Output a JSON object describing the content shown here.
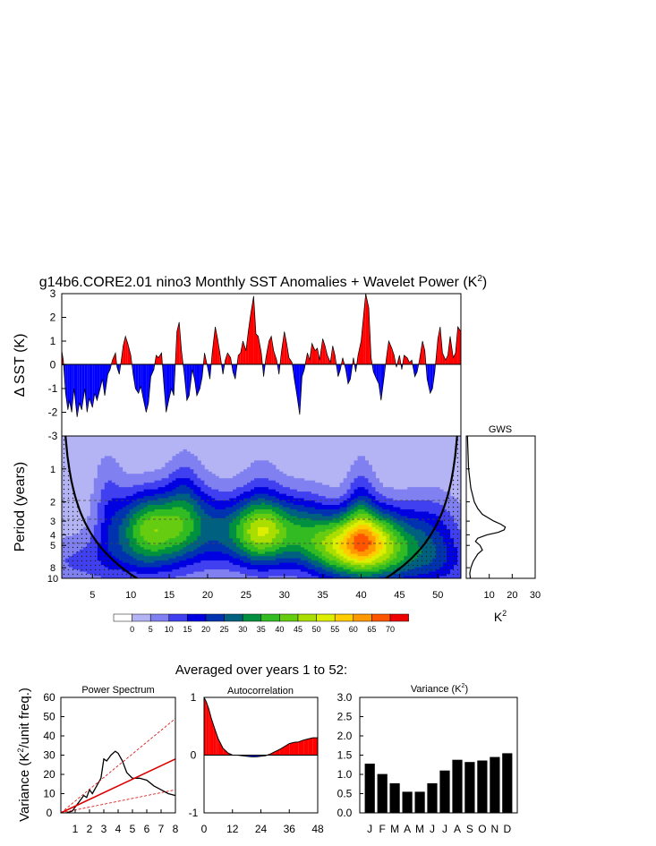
{
  "title": "g14b6.CORE2.01 nino3 Monthly SST Anomalies + Wavelet Power (K",
  "title_sup": "2",
  "title_close": ")",
  "sst_panel": {
    "ylabel": "Δ SST (K)",
    "ylim": [
      -3,
      3
    ],
    "yticks": [
      "3",
      "2",
      "1",
      "0",
      "-1",
      "-2",
      "-3"
    ]
  },
  "wavelet_panel": {
    "ylabel": "Period (years)",
    "yticks": [
      "1",
      "2",
      "3",
      "4",
      "5",
      "8",
      "10"
    ],
    "xticks": [
      "5",
      "10",
      "15",
      "20",
      "25",
      "30",
      "35",
      "40",
      "45",
      "50"
    ]
  },
  "gws_panel": {
    "title": "GWS",
    "xticks": [
      "10",
      "20",
      "30"
    ],
    "xlabel": "K",
    "xlabel_sup": "2"
  },
  "colorbar": {
    "labels": [
      "0",
      "5",
      "10",
      "15",
      "20",
      "25",
      "30",
      "35",
      "40",
      "45",
      "50",
      "55",
      "60",
      "65",
      "70"
    ],
    "colors": [
      "#ffffff",
      "#b4b4f5",
      "#8080f0",
      "#4040f0",
      "#0000e0",
      "#0033b0",
      "#006080",
      "#009040",
      "#33bb22",
      "#66cc11",
      "#aadd00",
      "#ddee00",
      "#ffcc00",
      "#ff9900",
      "#ff5500",
      "#ee0000"
    ]
  },
  "averaged_title": "Averaged over years 1 to 52:",
  "bottom_ylabel": "Variance (K",
  "bottom_ylabel_sup": "2",
  "bottom_ylabel_close": "/unit freq.)",
  "power_panel": {
    "title": "Power Spectrum",
    "yticks": [
      "60",
      "50",
      "40",
      "30",
      "20",
      "10",
      "0"
    ],
    "xticks": [
      "1",
      "2",
      "3",
      "4",
      "5",
      "6",
      "7",
      "8"
    ]
  },
  "autocorr_panel": {
    "title": "Autocorrelation",
    "yticks": [
      "1",
      "0",
      "-1"
    ],
    "xticks": [
      "0",
      "12",
      "24",
      "36",
      "48"
    ]
  },
  "variance_panel": {
    "title": "Variance (K",
    "title_sup": "2",
    "title_close": ")",
    "yticks": [
      "3.0",
      "2.5",
      "2.0",
      "1.5",
      "1.0",
      "0.5",
      "0.0"
    ]
  },
  "chart_data": [
    {
      "type": "area",
      "name": "sst",
      "x_range": [
        1,
        53
      ],
      "ylim": [
        -3,
        3
      ],
      "x": [
        1.0,
        1.2,
        1.5,
        1.8,
        2.0,
        2.3,
        2.6,
        3.0,
        3.3,
        3.6,
        4.0,
        4.3,
        4.6,
        5.0,
        5.3,
        5.6,
        6.0,
        6.3,
        6.6,
        7.0,
        7.3,
        7.6,
        8.0,
        8.2,
        8.5,
        8.8,
        9.0,
        9.3,
        9.6,
        10.0,
        10.3,
        10.6,
        11.0,
        11.3,
        11.6,
        12.0,
        12.3,
        12.6,
        13.0,
        13.3,
        13.6,
        14.0,
        14.3,
        14.6,
        15.0,
        15.3,
        15.6,
        16.0,
        16.3,
        16.6,
        17.0,
        17.3,
        17.6,
        18.0,
        18.3,
        18.6,
        19.0,
        19.3,
        19.6,
        20.0,
        20.3,
        20.6,
        21.0,
        21.3,
        21.6,
        22.0,
        22.3,
        22.6,
        23.0,
        23.3,
        23.6,
        24.0,
        24.3,
        24.6,
        25.0,
        25.3,
        25.6,
        26.0,
        26.3,
        26.6,
        27.0,
        27.3,
        27.6,
        28.0,
        28.3,
        28.6,
        29.0,
        29.3,
        29.6,
        30.0,
        30.3,
        30.6,
        31.0,
        31.3,
        31.6,
        32.0,
        32.3,
        32.6,
        33.0,
        33.3,
        33.6,
        34.0,
        34.3,
        34.6,
        35.0,
        35.3,
        35.6,
        36.0,
        36.3,
        36.6,
        37.0,
        37.3,
        37.6,
        38.0,
        38.3,
        38.6,
        39.0,
        39.3,
        39.6,
        40.0,
        40.3,
        40.6,
        41.0,
        41.3,
        41.6,
        42.0,
        42.3,
        42.6,
        43.0,
        43.3,
        43.6,
        44.0,
        44.3,
        44.6,
        45.0,
        45.3,
        45.6,
        46.0,
        46.3,
        46.6,
        47.0,
        47.3,
        47.6,
        48.0,
        48.3,
        48.6,
        49.0,
        49.3,
        49.6,
        50.0,
        50.3,
        50.6,
        51.0,
        51.3,
        51.6,
        52.0,
        52.3,
        52.6,
        53.0
      ],
      "y": [
        0.6,
        0.2,
        -1.2,
        -1.9,
        -1.5,
        -2.0,
        -1.0,
        -2.2,
        -1.6,
        -1.9,
        -1.0,
        -2.0,
        -1.4,
        -1.8,
        -1.2,
        -1.5,
        -1.0,
        -0.6,
        -1.3,
        -0.4,
        -0.2,
        0.2,
        0.5,
        -0.1,
        -0.4,
        0.3,
        0.8,
        1.2,
        0.9,
        0.4,
        -0.4,
        -1.0,
        -1.2,
        -0.9,
        -1.4,
        -2.0,
        -1.6,
        -0.5,
        -0.2,
        0.4,
        0.3,
        0.5,
        -0.8,
        -2.0,
        -1.4,
        -1.0,
        -1.3,
        1.4,
        1.8,
        0.6,
        -0.5,
        -1.5,
        -1.3,
        -0.2,
        -0.6,
        -1.3,
        -1.0,
        -0.5,
        0.5,
        -0.1,
        -0.6,
        0.5,
        1.6,
        1.1,
        0.5,
        -0.4,
        0.2,
        0.5,
        0.3,
        -0.3,
        -0.6,
        0.4,
        0.5,
        1.0,
        0.6,
        1.4,
        2.1,
        2.9,
        1.3,
        1.2,
        0.5,
        -0.5,
        0.3,
        1.0,
        1.2,
        0.6,
        0.2,
        -0.4,
        0.5,
        1.4,
        0.9,
        0.3,
        0.1,
        -0.6,
        -1.2,
        -2.1,
        -0.5,
        -0.2,
        0.5,
        0.2,
        0.9,
        0.6,
        0.7,
        0.2,
        1.1,
        0.8,
        0.4,
        0.1,
        0.8,
        0.4,
        -0.5,
        -0.2,
        0.3,
        -0.2,
        -0.8,
        -0.6,
        0.3,
        -0.3,
        0.4,
        1.0,
        2.0,
        3.0,
        2.4,
        0.3,
        -0.3,
        -0.6,
        -0.8,
        -1.5,
        -0.5,
        0.3,
        1.0,
        0.7,
        0.4,
        -0.1,
        0.4,
        -0.2,
        0.4,
        0.3,
        0.1,
        0.2,
        -0.5,
        -0.3,
        0.2,
        1.0,
        0.6,
        -0.6,
        -1.2,
        -1.0,
        -0.3,
        1.1,
        1.6,
        0.5,
        0.2,
        0.4,
        1.2,
        0.3,
        0.5,
        1.6,
        1.4
      ]
    },
    {
      "type": "heatmap",
      "name": "wavelet_power",
      "x_range": [
        1,
        53
      ],
      "period_range": [
        0.5,
        10
      ],
      "levels": [
        0,
        5,
        10,
        15,
        20,
        25,
        30,
        35,
        40,
        45,
        50,
        55,
        60,
        65,
        70
      ],
      "blobs": [
        {
          "t": 13,
          "p": 3.5,
          "st": 3.5,
          "sp": 0.55,
          "a": 42
        },
        {
          "t": 27,
          "p": 3.8,
          "st": 3.5,
          "sp": 0.5,
          "a": 42
        },
        {
          "t": 41,
          "p": 4.6,
          "st": 3.5,
          "sp": 0.5,
          "a": 50
        },
        {
          "t": 36,
          "p": 5.2,
          "st": 3.0,
          "sp": 0.45,
          "a": 22
        },
        {
          "t": 20,
          "p": 3.4,
          "st": 2.5,
          "sp": 0.6,
          "a": 14
        },
        {
          "t": 33,
          "p": 3.3,
          "st": 2.5,
          "sp": 0.55,
          "a": 13
        },
        {
          "t": 40,
          "p": 2.2,
          "st": 1.3,
          "sp": 0.7,
          "a": 12
        },
        {
          "t": 17,
          "p": 2.0,
          "st": 1.6,
          "sp": 0.7,
          "a": 12
        },
        {
          "t": 7,
          "p": 2.0,
          "st": 1.4,
          "sp": 0.8,
          "a": 8
        },
        {
          "t": 27,
          "p": 2.3,
          "st": 2.0,
          "sp": 0.8,
          "a": 8
        },
        {
          "t": 49,
          "p": 4.0,
          "st": 3.0,
          "sp": 0.6,
          "a": 16
        },
        {
          "t": 5,
          "p": 7.0,
          "st": 7.0,
          "sp": 0.4,
          "a": 10
        },
        {
          "t": 47,
          "p": 7.5,
          "st": 7.0,
          "sp": 0.4,
          "a": 12
        }
      ]
    },
    {
      "type": "line",
      "name": "gws",
      "xlim": [
        0,
        30
      ],
      "period": [
        0.5,
        1.0,
        1.5,
        2.0,
        2.3,
        2.6,
        3.0,
        3.2,
        3.4,
        3.6,
        3.8,
        4.0,
        4.3,
        4.6,
        5.0,
        5.5,
        6.0,
        7.0,
        8.0,
        9.0,
        10.0
      ],
      "power": [
        0.5,
        1.0,
        2.0,
        3.5,
        5.0,
        7.0,
        12.0,
        15.0,
        17.0,
        16.5,
        14.0,
        9.0,
        5.0,
        4.0,
        6.0,
        7.0,
        5.0,
        3.0,
        2.0,
        1.5,
        1.8
      ]
    },
    {
      "type": "line",
      "name": "power_spectrum",
      "xlim": [
        0,
        8
      ],
      "ylim": [
        0,
        60
      ],
      "series": [
        {
          "x": [
            0.4,
            0.8,
            1.0,
            1.3,
            1.6,
            1.8,
            2.0,
            2.2,
            2.5,
            2.8,
            3.0,
            3.2,
            3.5,
            3.8,
            4.0,
            4.3,
            4.6,
            5.0,
            5.5,
            6.0,
            6.5,
            7.0,
            7.5,
            8.0
          ],
          "y": [
            0,
            1,
            3,
            6,
            9,
            8,
            12,
            10,
            14,
            18,
            28,
            27,
            30,
            32,
            31,
            27,
            21,
            18,
            18,
            17,
            14,
            12,
            10,
            9
          ]
        },
        {
          "x": [
            0,
            8
          ],
          "y": [
            0,
            28
          ]
        },
        {
          "x": [
            0,
            8
          ],
          "y": [
            0,
            49
          ]
        },
        {
          "x": [
            0,
            8
          ],
          "y": [
            0,
            12
          ]
        }
      ]
    },
    {
      "type": "area",
      "name": "autocorrelation",
      "xlim": [
        0,
        48
      ],
      "ylim": [
        -1,
        1
      ],
      "x": [
        0,
        1,
        2,
        3,
        4,
        5,
        6,
        8,
        10,
        12,
        14,
        16,
        18,
        20,
        22,
        24,
        26,
        28,
        30,
        32,
        34,
        36,
        38,
        40,
        42,
        44,
        46,
        48
      ],
      "y": [
        1.0,
        0.92,
        0.8,
        0.65,
        0.52,
        0.4,
        0.28,
        0.12,
        0.04,
        0.0,
        0.0,
        -0.01,
        -0.02,
        -0.03,
        -0.03,
        -0.02,
        -0.01,
        0.02,
        0.06,
        0.1,
        0.15,
        0.2,
        0.22,
        0.23,
        0.26,
        0.28,
        0.3,
        0.3
      ]
    },
    {
      "type": "bar",
      "name": "variance",
      "categories": [
        "J",
        "F",
        "M",
        "A",
        "M",
        "J",
        "J",
        "A",
        "S",
        "O",
        "N",
        "D"
      ],
      "values": [
        1.28,
        1.01,
        0.77,
        0.55,
        0.55,
        0.77,
        1.1,
        1.38,
        1.32,
        1.36,
        1.45,
        1.55
      ],
      "ylim": [
        0,
        3
      ]
    }
  ]
}
